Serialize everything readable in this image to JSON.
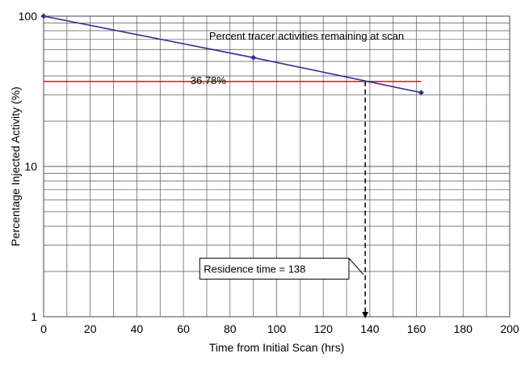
{
  "chart_data": {
    "type": "line",
    "title": "",
    "xlabel": "Time from Initial Scan (hrs)",
    "ylabel": "Percentage Injected Activity (%)",
    "y_scale": "log",
    "xlim": [
      0,
      200
    ],
    "ylim": [
      1,
      100
    ],
    "x_ticks": [
      0,
      20,
      40,
      60,
      80,
      100,
      120,
      140,
      160,
      180,
      200
    ],
    "y_ticks": [
      1,
      10,
      100
    ],
    "grid": true,
    "x_grid_step": 10,
    "series": [
      {
        "name": "Percent tracer activities remaining at scan",
        "color": "#2e3192",
        "marker": "diamond",
        "x": [
          0,
          90,
          162
        ],
        "y": [
          100,
          53,
          31
        ]
      }
    ],
    "reference_line": {
      "label": "36.78%",
      "y": 36.78,
      "color": "#d9262b"
    },
    "residence_marker": {
      "label": "Residence time = 138",
      "x": 138
    },
    "grid_color": "#555555"
  }
}
